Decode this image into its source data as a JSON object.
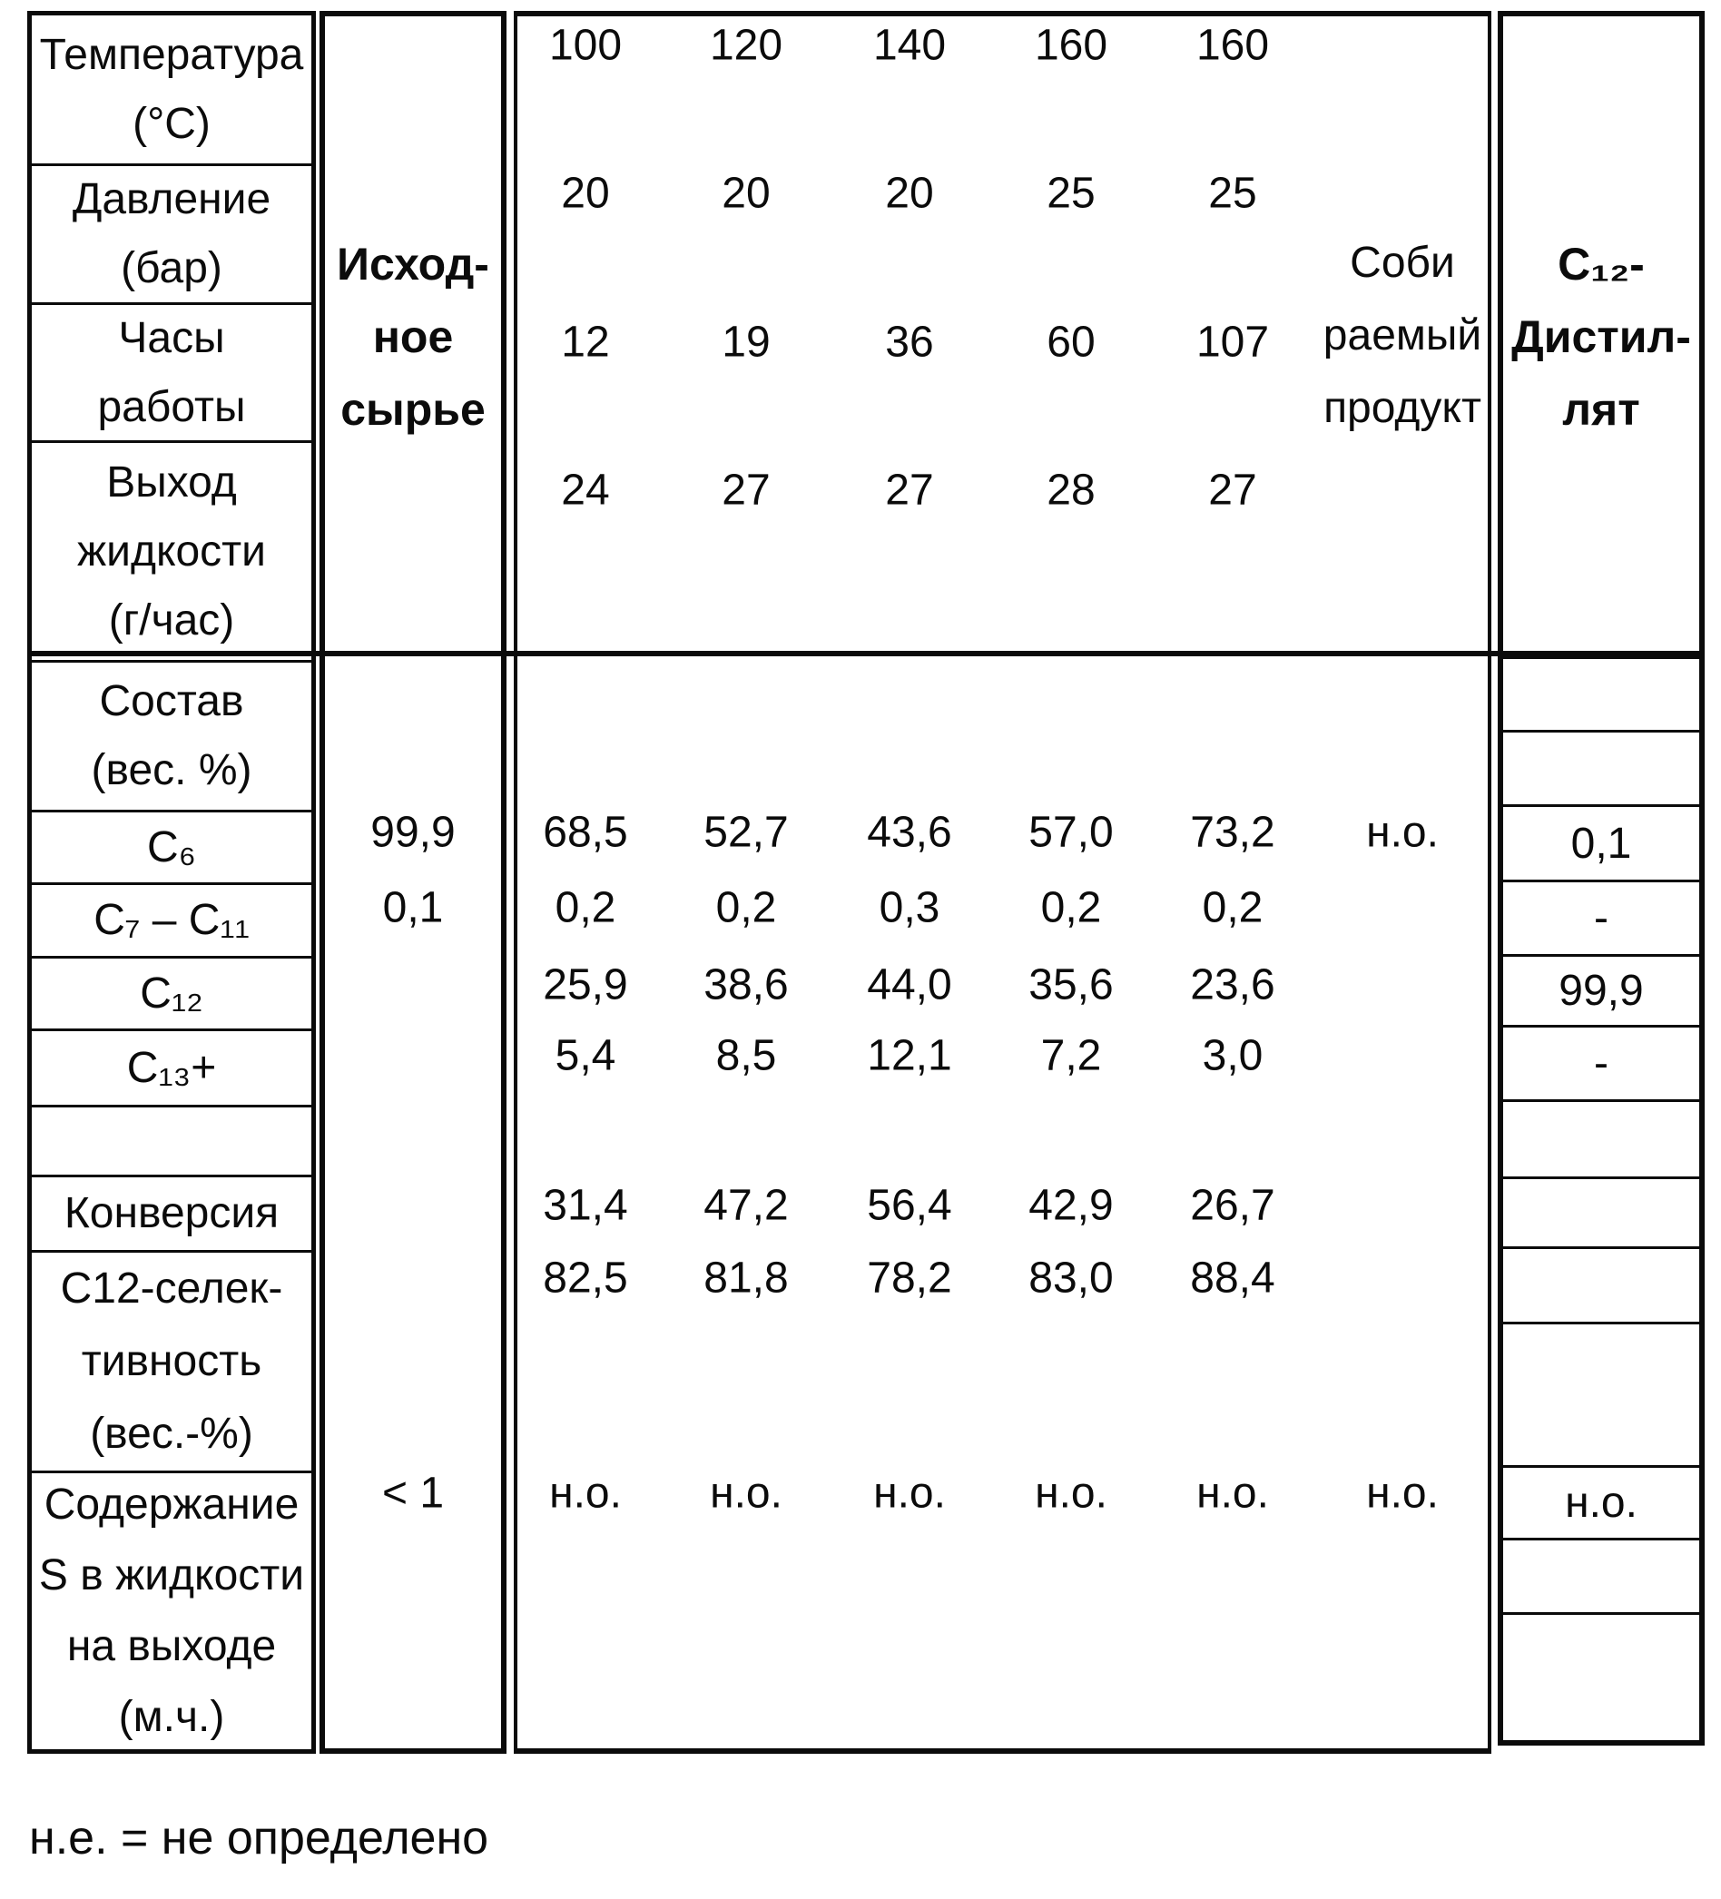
{
  "document": {
    "footnote": "н.е. = не определено"
  },
  "table": {
    "feed_column": {
      "header_lines": [
        "Исход-",
        "ное",
        "сырье"
      ]
    },
    "collected_column": {
      "header_lines": [
        "Соби",
        "раемый",
        "продукт"
      ]
    },
    "distillate_column": {
      "header_lines": [
        "С₁₂-",
        "Дистил-",
        "лят"
      ],
      "cells": [
        "",
        "",
        "0,1",
        "-",
        "99,9",
        "-",
        "",
        "",
        "",
        "",
        "н.о.",
        "",
        ""
      ]
    },
    "row_labels": {
      "temperature": [
        "Температура",
        "(°C)"
      ],
      "pressure": [
        "Давление",
        "(бар)"
      ],
      "hours": [
        "Часы",
        "работы"
      ],
      "liquid_yield": [
        "Выход",
        "жидкости",
        "(г/час)"
      ],
      "composition": [
        "Состав",
        "(вес. %)"
      ],
      "c6": [
        "C₆"
      ],
      "c7_c11": [
        "C₇ – C₁₁"
      ],
      "c12": [
        "C₁₂"
      ],
      "c13plus": [
        "C₁₃+"
      ],
      "conversion": [
        "Конверсия"
      ],
      "selectivity": [
        "С12-селек-",
        "тивность",
        "(вес.-%)"
      ],
      "sulfur": [
        "Содержание",
        "S в жидкости",
        "на выходе",
        "(м.ч.)"
      ]
    },
    "data_rows": [
      {
        "key": "temperature",
        "feed": "",
        "values": [
          "100",
          "120",
          "140",
          "160",
          "160"
        ],
        "collected": ""
      },
      {
        "key": "pressure",
        "feed": "",
        "values": [
          "20",
          "20",
          "20",
          "25",
          "25"
        ],
        "collected": ""
      },
      {
        "key": "hours",
        "feed": "",
        "values": [
          "12",
          "19",
          "36",
          "60",
          "107"
        ],
        "collected": ""
      },
      {
        "key": "liquid_yield",
        "feed": "",
        "values": [
          "24",
          "27",
          "27",
          "28",
          "27"
        ],
        "collected": ""
      },
      {
        "key": "c6",
        "feed": "99,9",
        "values": [
          "68,5",
          "52,7",
          "43,6",
          "57,0",
          "73,2"
        ],
        "collected": "н.о."
      },
      {
        "key": "c7_c11",
        "feed": "0,1",
        "values": [
          "0,2",
          "0,2",
          "0,3",
          "0,2",
          "0,2"
        ],
        "collected": ""
      },
      {
        "key": "c12",
        "feed": "",
        "values": [
          "25,9",
          "38,6",
          "44,0",
          "35,6",
          "23,6"
        ],
        "collected": ""
      },
      {
        "key": "c13plus",
        "feed": "",
        "values": [
          "5,4",
          "8,5",
          "12,1",
          "7,2",
          "3,0"
        ],
        "collected": ""
      },
      {
        "key": "conversion",
        "feed": "",
        "values": [
          "31,4",
          "47,2",
          "56,4",
          "42,9",
          "26,7"
        ],
        "collected": ""
      },
      {
        "key": "selectivity",
        "feed": "",
        "values": [
          "82,5",
          "81,8",
          "78,2",
          "83,0",
          "88,4"
        ],
        "collected": ""
      },
      {
        "key": "sulfur",
        "feed": "< 1",
        "values": [
          "н.о.",
          "н.о.",
          "н.о.",
          "н.о.",
          "н.о."
        ],
        "collected": "н.о."
      }
    ]
  }
}
